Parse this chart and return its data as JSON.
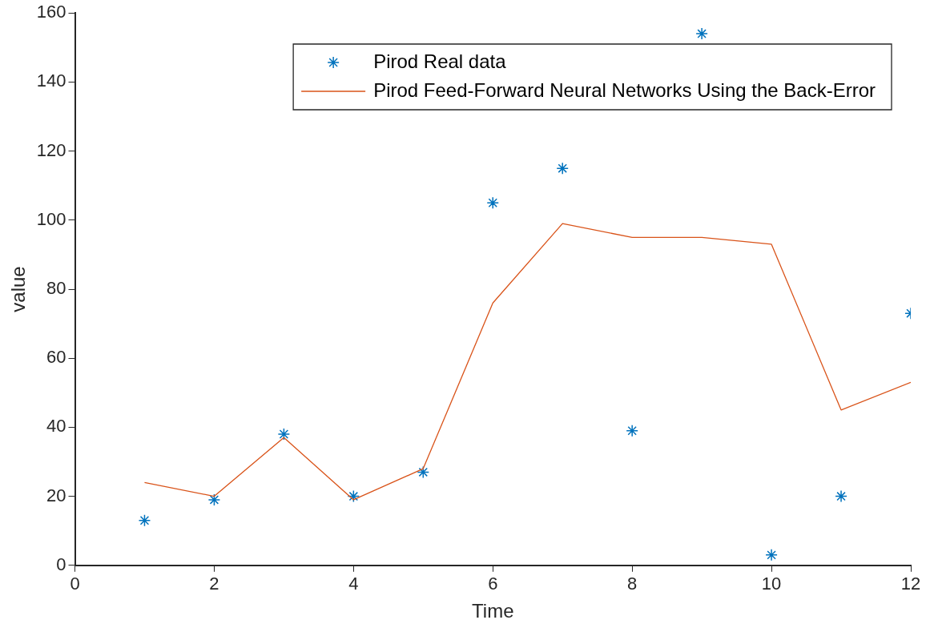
{
  "chart_data": {
    "type": "scatter",
    "xlabel": "Time",
    "ylabel": "value",
    "xlim": [
      0,
      12
    ],
    "xticks": [
      0,
      2,
      4,
      6,
      8,
      10,
      12
    ],
    "ylim": [
      0,
      160
    ],
    "yticks": [
      0,
      20,
      40,
      60,
      80,
      100,
      120,
      140,
      160
    ],
    "grid": false,
    "legend": "top right",
    "series": [
      {
        "name": "Pirod Real data",
        "type": "scatter",
        "marker": "cross",
        "color": "#0072bd",
        "x": [
          1,
          2,
          3,
          4,
          5,
          6,
          7,
          8,
          9,
          10,
          11,
          12
        ],
        "values": [
          13,
          19,
          38,
          20,
          27,
          105,
          115,
          39,
          154,
          3,
          20,
          73
        ]
      },
      {
        "name": "Pirod Feed-Forward Neural Networks Using the Back-Error",
        "type": "line",
        "marker": "none",
        "line_style": "solid",
        "color": "#d95319",
        "x": [
          1,
          2,
          3,
          4,
          5,
          6,
          7,
          8,
          9,
          10,
          11,
          12
        ],
        "values": [
          24,
          20,
          37,
          19,
          28,
          76,
          99,
          95,
          95,
          93,
          45,
          53
        ]
      }
    ]
  }
}
